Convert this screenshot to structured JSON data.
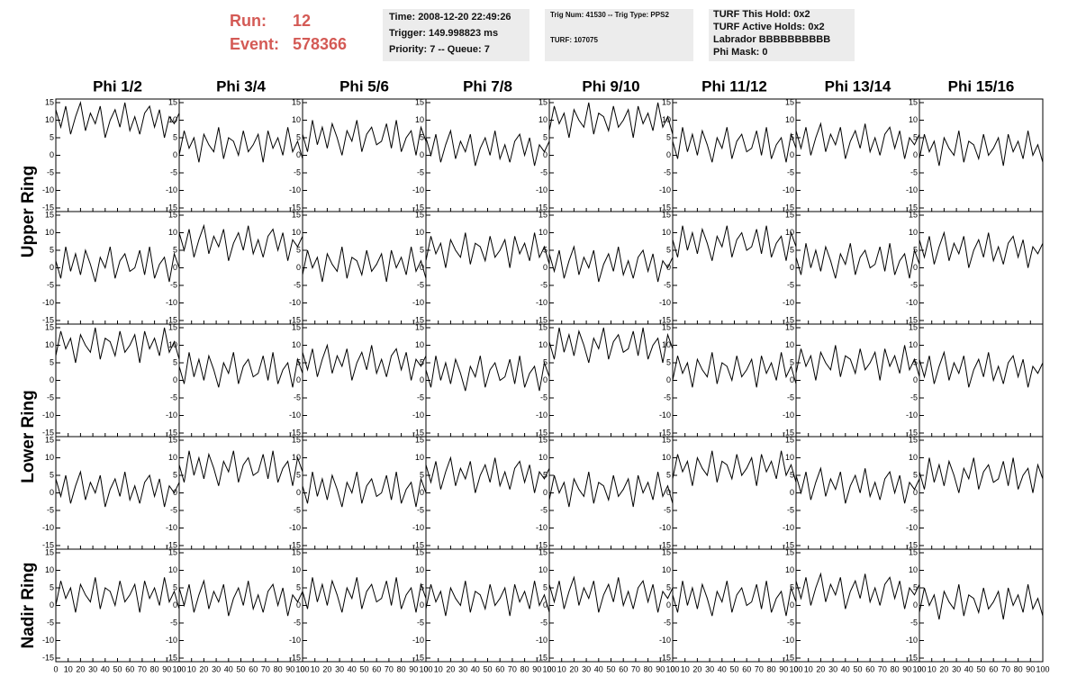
{
  "header": {
    "run_label": "Run:",
    "run": "12",
    "event_label": "Event:",
    "event": "578366",
    "time_box": [
      "Time: 2008-12-20 22:49:26",
      "Trigger: 149.998823 ms",
      "Priority: 7 -- Queue: 7"
    ],
    "trig_box": [
      "Trig Num: 41530 -- Trig Type: PPS2",
      "TURF: 107075"
    ],
    "turf_box": [
      "TURF This Hold: 0x2",
      "TURF Active Holds: 0x2",
      "Labrador BBBBBBBBBB",
      "Phi Mask: 0"
    ]
  },
  "chart_data": {
    "type": "line",
    "columns": [
      "Phi 1/2",
      "Phi 3/4",
      "Phi 5/6",
      "Phi 7/8",
      "Phi 9/10",
      "Phi 11/12",
      "Phi 13/14",
      "Phi 15/16"
    ],
    "rows": [
      "Upper Ring",
      "Lower Ring",
      "Nadir Ring"
    ],
    "color": "#000000",
    "xlim": [
      0,
      100
    ],
    "xticks": [
      0,
      10,
      20,
      30,
      40,
      50,
      60,
      70,
      80,
      90,
      100
    ],
    "ylim": [
      -15,
      15
    ],
    "yticks": [
      -15,
      -10,
      -5,
      0,
      5,
      10,
      15
    ],
    "x": [
      0,
      4,
      8,
      12,
      16,
      20,
      24,
      28,
      32,
      36,
      40,
      44,
      48,
      52,
      56,
      60,
      64,
      68,
      72,
      76,
      80,
      84,
      88,
      92,
      96,
      100
    ],
    "panels": [
      [
        [
          13,
          8,
          14,
          6,
          11,
          15,
          7,
          12,
          9,
          14,
          5,
          10,
          13,
          8,
          15,
          7,
          11,
          6,
          12,
          14,
          8,
          13,
          5,
          11,
          9,
          12
        ],
        [
          0,
          7,
          2,
          5,
          -2,
          6,
          3,
          1,
          8,
          -1,
          5,
          4,
          0,
          7,
          1,
          3,
          6,
          -2,
          7,
          2,
          5,
          0,
          8,
          1,
          4,
          -1
        ],
        [
          6,
          1,
          10,
          3,
          8,
          2,
          9,
          5,
          0,
          7,
          4,
          10,
          1,
          6,
          8,
          3,
          4,
          9,
          2,
          10,
          1,
          5,
          7,
          0,
          8,
          4
        ],
        [
          5,
          0,
          6,
          -2,
          3,
          7,
          -1,
          4,
          1,
          6,
          -3,
          2,
          5,
          0,
          7,
          -1,
          3,
          -2,
          4,
          6,
          0,
          5,
          -3,
          3,
          1,
          4
        ],
        [
          7,
          14,
          9,
          12,
          5,
          13,
          10,
          8,
          15,
          6,
          12,
          11,
          7,
          14,
          8,
          10,
          13,
          5,
          14,
          9,
          12,
          7,
          15,
          8,
          11,
          6
        ],
        [
          4,
          -1,
          8,
          1,
          6,
          0,
          7,
          3,
          -2,
          5,
          2,
          8,
          -1,
          4,
          6,
          1,
          2,
          7,
          0,
          8,
          -1,
          3,
          5,
          -2,
          6,
          2
        ],
        [
          7,
          2,
          8,
          0,
          5,
          9,
          1,
          6,
          3,
          8,
          -1,
          4,
          7,
          2,
          9,
          1,
          5,
          0,
          6,
          8,
          2,
          7,
          -1,
          5,
          3,
          6
        ],
        [
          -1,
          6,
          1,
          4,
          -3,
          5,
          2,
          0,
          7,
          -2,
          4,
          3,
          -1,
          6,
          0,
          2,
          5,
          -3,
          6,
          1,
          4,
          -1,
          7,
          0,
          3,
          -2
        ]
      ],
      [
        [
          2,
          -3,
          6,
          -1,
          4,
          -2,
          5,
          1,
          -4,
          3,
          0,
          6,
          -3,
          2,
          4,
          -1,
          0,
          5,
          -2,
          6,
          -3,
          1,
          3,
          -4,
          4,
          0
        ],
        [
          10,
          5,
          11,
          3,
          8,
          12,
          4,
          9,
          6,
          11,
          2,
          7,
          10,
          5,
          12,
          4,
          8,
          3,
          9,
          11,
          5,
          10,
          2,
          8,
          6,
          9
        ],
        [
          -2,
          5,
          0,
          3,
          -4,
          4,
          1,
          -1,
          6,
          -3,
          3,
          2,
          -2,
          5,
          -1,
          1,
          4,
          -4,
          5,
          0,
          3,
          -2,
          6,
          -1,
          2,
          -3
        ],
        [
          2,
          9,
          4,
          7,
          0,
          8,
          5,
          3,
          10,
          1,
          7,
          6,
          2,
          9,
          3,
          5,
          8,
          0,
          9,
          4,
          7,
          2,
          10,
          3,
          6,
          1
        ],
        [
          4,
          -1,
          5,
          -3,
          2,
          6,
          -2,
          3,
          0,
          5,
          -4,
          1,
          4,
          -1,
          6,
          -2,
          2,
          -3,
          3,
          5,
          -1,
          4,
          -4,
          2,
          0,
          3
        ],
        [
          8,
          3,
          12,
          5,
          10,
          4,
          11,
          7,
          2,
          9,
          6,
          12,
          3,
          8,
          10,
          5,
          6,
          11,
          4,
          12,
          3,
          7,
          9,
          2,
          10,
          6
        ],
        [
          3,
          -2,
          7,
          0,
          5,
          -1,
          6,
          2,
          -3,
          4,
          1,
          7,
          -2,
          3,
          5,
          0,
          1,
          6,
          -1,
          7,
          -2,
          2,
          4,
          -3,
          5,
          1
        ],
        [
          8,
          3,
          9,
          1,
          6,
          10,
          2,
          7,
          4,
          9,
          0,
          5,
          8,
          3,
          10,
          2,
          6,
          1,
          7,
          9,
          3,
          8,
          0,
          6,
          4,
          7
        ]
      ],
      [
        [
          7,
          14,
          9,
          12,
          5,
          13,
          10,
          8,
          15,
          6,
          12,
          11,
          7,
          14,
          8,
          10,
          13,
          5,
          14,
          9,
          12,
          7,
          15,
          8,
          11,
          6
        ],
        [
          4,
          -1,
          8,
          1,
          6,
          0,
          7,
          3,
          -2,
          5,
          2,
          8,
          -1,
          4,
          6,
          1,
          2,
          7,
          0,
          8,
          -1,
          3,
          5,
          -2,
          6,
          2
        ],
        [
          8,
          3,
          9,
          1,
          6,
          10,
          2,
          7,
          4,
          9,
          0,
          5,
          8,
          3,
          10,
          2,
          6,
          1,
          7,
          9,
          3,
          8,
          0,
          6,
          4,
          7
        ],
        [
          3,
          -2,
          7,
          0,
          5,
          -1,
          6,
          2,
          -3,
          4,
          1,
          7,
          -2,
          3,
          5,
          0,
          1,
          6,
          -1,
          7,
          -2,
          2,
          4,
          -3,
          5,
          1
        ],
        [
          11,
          6,
          15,
          8,
          13,
          7,
          14,
          10,
          5,
          12,
          9,
          15,
          6,
          11,
          13,
          8,
          9,
          14,
          7,
          15,
          6,
          10,
          12,
          5,
          13,
          9
        ],
        [
          0,
          7,
          2,
          5,
          -2,
          6,
          3,
          1,
          8,
          -1,
          5,
          4,
          0,
          7,
          1,
          3,
          6,
          -2,
          7,
          2,
          5,
          0,
          8,
          1,
          4,
          -1
        ],
        [
          2,
          9,
          4,
          7,
          0,
          8,
          5,
          3,
          10,
          1,
          7,
          6,
          2,
          9,
          3,
          5,
          8,
          0,
          9,
          4,
          7,
          2,
          10,
          3,
          6,
          1
        ],
        [
          6,
          1,
          7,
          -1,
          4,
          8,
          0,
          5,
          2,
          7,
          -2,
          3,
          6,
          1,
          8,
          0,
          4,
          -1,
          5,
          7,
          1,
          6,
          -2,
          4,
          2,
          5
        ]
      ],
      [
        [
          4,
          -1,
          5,
          -3,
          2,
          6,
          -2,
          3,
          0,
          5,
          -4,
          1,
          4,
          -1,
          6,
          -2,
          2,
          -3,
          3,
          5,
          -1,
          4,
          -4,
          2,
          0,
          3
        ],
        [
          8,
          3,
          12,
          5,
          10,
          4,
          11,
          7,
          2,
          9,
          6,
          12,
          3,
          8,
          10,
          5,
          6,
          11,
          4,
          12,
          3,
          7,
          9,
          2,
          10,
          6
        ],
        [
          2,
          -3,
          6,
          -1,
          4,
          -2,
          5,
          1,
          -4,
          3,
          0,
          6,
          -3,
          2,
          4,
          -1,
          0,
          5,
          -2,
          6,
          -3,
          1,
          3,
          -4,
          4,
          0
        ],
        [
          8,
          3,
          9,
          1,
          6,
          10,
          2,
          7,
          4,
          9,
          0,
          5,
          8,
          3,
          10,
          2,
          6,
          1,
          7,
          9,
          3,
          8,
          0,
          6,
          4,
          7
        ],
        [
          -2,
          5,
          0,
          3,
          -4,
          4,
          1,
          -1,
          6,
          -3,
          3,
          2,
          -2,
          5,
          -1,
          1,
          4,
          -4,
          5,
          0,
          3,
          -2,
          6,
          -1,
          2,
          -3
        ],
        [
          4,
          11,
          6,
          9,
          2,
          10,
          7,
          5,
          12,
          3,
          9,
          8,
          4,
          11,
          5,
          7,
          10,
          2,
          11,
          6,
          9,
          4,
          12,
          5,
          8,
          3
        ],
        [
          5,
          0,
          6,
          -2,
          3,
          7,
          -1,
          4,
          1,
          6,
          -3,
          2,
          5,
          0,
          7,
          -1,
          3,
          -2,
          4,
          6,
          0,
          5,
          -3,
          3,
          1,
          4
        ],
        [
          6,
          1,
          10,
          3,
          8,
          2,
          9,
          5,
          0,
          7,
          4,
          10,
          1,
          6,
          8,
          3,
          4,
          9,
          2,
          10,
          1,
          5,
          7,
          0,
          8,
          4
        ]
      ],
      [
        [
          0,
          7,
          2,
          5,
          -2,
          6,
          3,
          1,
          8,
          -1,
          5,
          4,
          0,
          7,
          1,
          3,
          6,
          -2,
          7,
          2,
          5,
          0,
          8,
          1,
          4,
          -1
        ],
        [
          5,
          0,
          6,
          -2,
          3,
          7,
          -1,
          4,
          1,
          6,
          -3,
          2,
          5,
          0,
          7,
          -1,
          3,
          -2,
          4,
          6,
          0,
          5,
          -3,
          3,
          1,
          4
        ],
        [
          4,
          -1,
          8,
          1,
          6,
          0,
          7,
          3,
          -2,
          5,
          2,
          8,
          -1,
          4,
          6,
          1,
          2,
          7,
          0,
          8,
          -1,
          3,
          5,
          -2,
          6,
          2
        ],
        [
          -1,
          6,
          1,
          4,
          -3,
          5,
          2,
          0,
          7,
          -2,
          4,
          3,
          -1,
          6,
          0,
          2,
          5,
          -3,
          6,
          1,
          4,
          -1,
          7,
          0,
          3,
          -2
        ],
        [
          6,
          1,
          7,
          -1,
          4,
          8,
          0,
          5,
          2,
          7,
          -2,
          3,
          6,
          1,
          8,
          0,
          4,
          -1,
          5,
          7,
          1,
          6,
          -2,
          4,
          2,
          5
        ],
        [
          3,
          -2,
          7,
          0,
          5,
          -1,
          6,
          2,
          -3,
          4,
          1,
          7,
          -2,
          3,
          5,
          0,
          1,
          6,
          -1,
          7,
          -2,
          2,
          4,
          -3,
          5,
          1
        ],
        [
          7,
          2,
          8,
          0,
          5,
          9,
          1,
          6,
          3,
          8,
          -1,
          4,
          7,
          2,
          9,
          1,
          5,
          0,
          6,
          8,
          2,
          7,
          -1,
          5,
          3,
          6
        ],
        [
          -2,
          5,
          0,
          3,
          -4,
          4,
          1,
          -1,
          6,
          -3,
          3,
          2,
          -2,
          5,
          -1,
          1,
          4,
          -4,
          5,
          0,
          3,
          -2,
          6,
          -1,
          2,
          -3
        ]
      ]
    ]
  }
}
